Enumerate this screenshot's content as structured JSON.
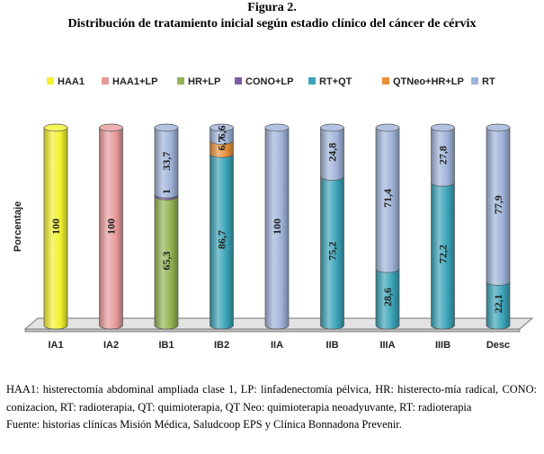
{
  "figure": {
    "number": "Figura 2.",
    "title": "Distribución de tratamiento inicial según estadio clínico del cáncer de cérvix"
  },
  "chart_data": {
    "type": "bar",
    "stacked": true,
    "style": "3d-cylinder",
    "ylabel": "Porcentaje",
    "xlabel": "",
    "ylim": [
      0,
      100
    ],
    "grid": false,
    "legend_position": "top",
    "categories": [
      "IA1",
      "IA2",
      "IB1",
      "IB2",
      "IIA",
      "IIB",
      "IIIA",
      "IIIB",
      "Desc"
    ],
    "series": [
      {
        "name": "HAA1",
        "color": "#f2f230",
        "values": [
          100,
          0,
          0,
          0,
          0,
          0,
          0,
          0,
          0
        ]
      },
      {
        "name": "HAA1+LP",
        "color": "#e89b9b",
        "values": [
          0,
          100,
          0,
          0,
          0,
          0,
          0,
          0,
          0
        ]
      },
      {
        "name": "HR+LP",
        "color": "#93b453",
        "values": [
          0,
          0,
          65.3,
          0,
          0,
          0,
          0,
          0,
          0
        ]
      },
      {
        "name": "CONO+LP",
        "color": "#7c5fa5",
        "values": [
          0,
          0,
          1,
          0,
          0,
          0,
          0,
          0,
          0
        ]
      },
      {
        "name": "RT+QT",
        "color": "#3aa3b8",
        "values": [
          0,
          0,
          0,
          86.7,
          0,
          75.2,
          28.6,
          72.2,
          22.1
        ]
      },
      {
        "name": "QTNeo+HR+LP",
        "color": "#e8913a",
        "values": [
          0,
          0,
          0,
          6.7,
          0,
          0,
          0,
          0,
          0
        ]
      },
      {
        "name": "RT",
        "color": "#9fb3d9",
        "values": [
          0,
          0,
          33.7,
          6.6,
          100,
          24.8,
          71.4,
          27.8,
          77.9
        ]
      }
    ],
    "data_labels": [
      {
        "category": "IA1",
        "series": "HAA1",
        "text": "100"
      },
      {
        "category": "IA2",
        "series": "HAA1+LP",
        "text": "100"
      },
      {
        "category": "IB1",
        "series": "HR+LP",
        "text": "65,3"
      },
      {
        "category": "IB1",
        "series": "CONO+LP",
        "text": "1"
      },
      {
        "category": "IB1",
        "series": "RT",
        "text": "33,7"
      },
      {
        "category": "IB2",
        "series": "RT+QT",
        "text": "86,7"
      },
      {
        "category": "IB2",
        "series": "QTNeo+HR+LP",
        "text": "6,7"
      },
      {
        "category": "IB2",
        "series": "RT",
        "text": "6,6"
      },
      {
        "category": "IIA",
        "series": "RT",
        "text": "100"
      },
      {
        "category": "IIB",
        "series": "RT+QT",
        "text": "75,2"
      },
      {
        "category": "IIB",
        "series": "RT",
        "text": "24,8"
      },
      {
        "category": "IIIA",
        "series": "RT+QT",
        "text": "28,6"
      },
      {
        "category": "IIIA",
        "series": "RT",
        "text": "71,4"
      },
      {
        "category": "IIIB",
        "series": "RT+QT",
        "text": "72,2"
      },
      {
        "category": "IIIB",
        "series": "RT",
        "text": "27,8"
      },
      {
        "category": "Desc",
        "series": "RT+QT",
        "text": "22,1"
      },
      {
        "category": "Desc",
        "series": "RT",
        "text": "77,9"
      }
    ]
  },
  "notes": {
    "abbreviations": "HAA1: histerectomía abdominal ampliada clase 1, LP: linfadenectomía pélvica, HR: histerecto-mía radical, CONO: conizacion, RT: radioterapia, QT: quimioterapia, QT Neo: quimioterapia neoadyuvante, RT: radioterapia",
    "source": "Fuente: historias clínicas Misión Médica, Saludcoop EPS y Clínica Bonnadona Prevenir."
  }
}
